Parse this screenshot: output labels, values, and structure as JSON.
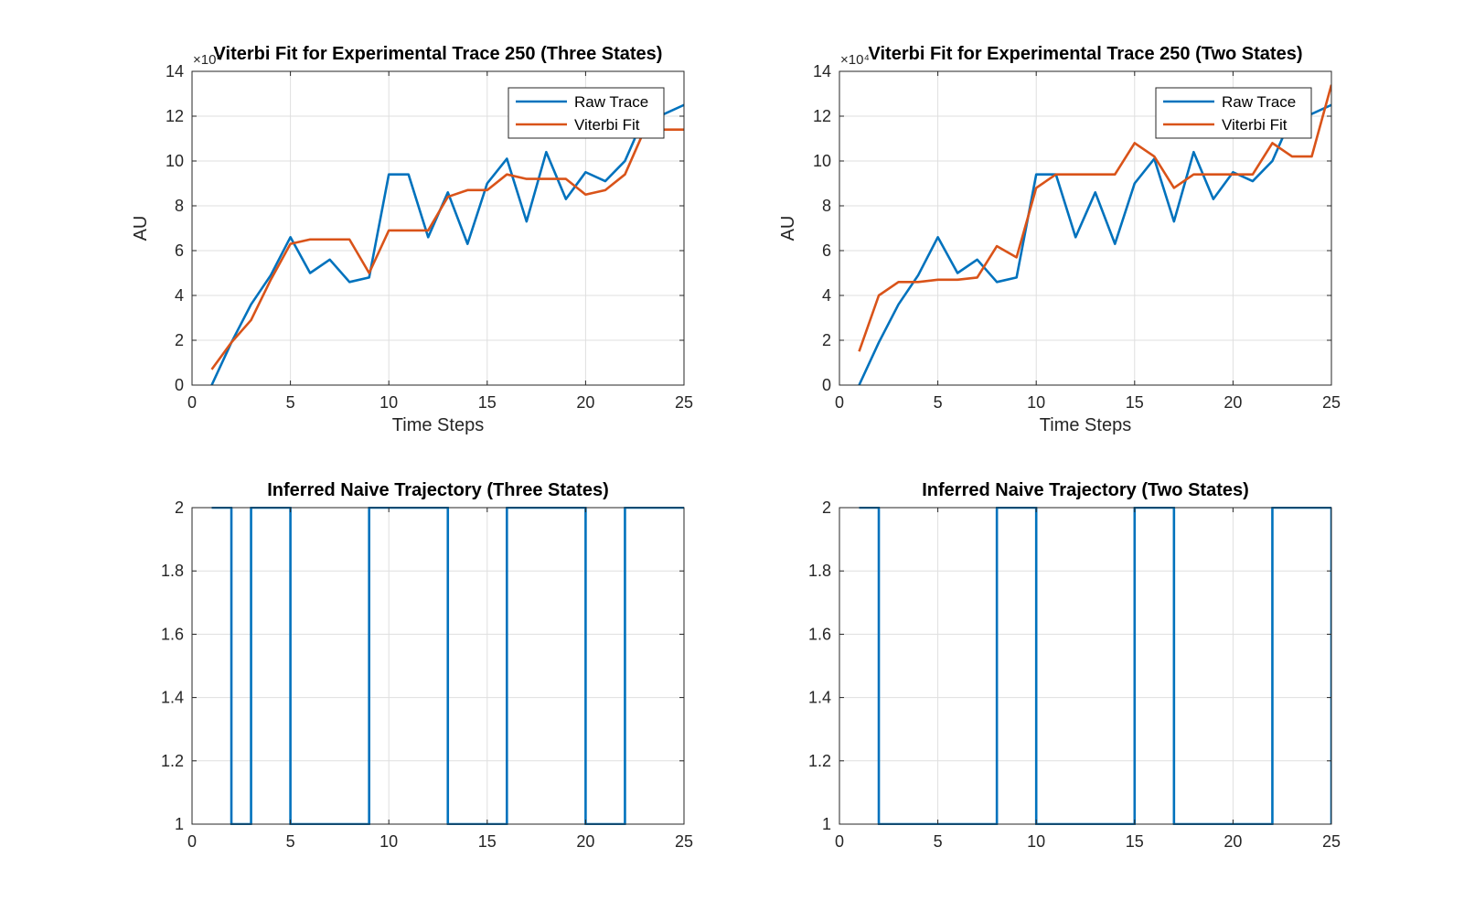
{
  "chart_data": [
    {
      "type": "line",
      "title": "Viterbi Fit for Experimental Trace 250 (Three States)",
      "xlabel": "Time Steps",
      "ylabel": "AU",
      "y_exponent": "×10⁴",
      "xlim": [
        0,
        25
      ],
      "ylim": [
        0,
        14
      ],
      "xticks": [
        "0",
        "5",
        "10",
        "15",
        "20",
        "25"
      ],
      "yticks": [
        "0",
        "2",
        "4",
        "6",
        "8",
        "10",
        "12",
        "14"
      ],
      "grid": true,
      "legend": "top-right",
      "series": [
        {
          "name": "Raw Trace",
          "color": "#0072BD",
          "x": [
            1,
            2,
            3,
            4,
            5,
            6,
            7,
            8,
            9,
            10,
            11,
            12,
            13,
            14,
            15,
            16,
            17,
            18,
            19,
            20,
            21,
            22,
            23,
            24,
            25
          ],
          "y": [
            0,
            1.9,
            3.6,
            4.9,
            6.6,
            5.0,
            5.6,
            4.6,
            4.8,
            9.4,
            9.4,
            6.6,
            8.6,
            6.3,
            9.0,
            10.1,
            7.3,
            10.4,
            8.3,
            9.5,
            9.1,
            10.0,
            12.0,
            12.1,
            12.5
          ]
        },
        {
          "name": "Viterbi Fit",
          "color": "#D95319",
          "x": [
            1,
            2,
            3,
            4,
            5,
            6,
            7,
            8,
            9,
            10,
            11,
            12,
            13,
            14,
            15,
            16,
            17,
            18,
            19,
            20,
            21,
            22,
            23,
            24,
            25
          ],
          "y": [
            0.7,
            1.9,
            2.9,
            4.7,
            6.3,
            6.5,
            6.5,
            6.5,
            5.0,
            6.9,
            6.9,
            6.9,
            8.4,
            8.7,
            8.7,
            9.4,
            9.2,
            9.2,
            9.2,
            8.5,
            8.7,
            9.4,
            11.4,
            11.4,
            11.4
          ]
        }
      ]
    },
    {
      "type": "line",
      "title": "Viterbi Fit for Experimental Trace  250 (Two States)",
      "xlabel": "Time Steps",
      "ylabel": "AU",
      "y_exponent": "×10⁴",
      "xlim": [
        0,
        25
      ],
      "ylim": [
        0,
        14
      ],
      "xticks": [
        "0",
        "5",
        "10",
        "15",
        "20",
        "25"
      ],
      "yticks": [
        "0",
        "2",
        "4",
        "6",
        "8",
        "10",
        "12",
        "14"
      ],
      "grid": true,
      "legend": "top-right",
      "series": [
        {
          "name": "Raw Trace",
          "color": "#0072BD",
          "x": [
            1,
            2,
            3,
            4,
            5,
            6,
            7,
            8,
            9,
            10,
            11,
            12,
            13,
            14,
            15,
            16,
            17,
            18,
            19,
            20,
            21,
            22,
            23,
            24,
            25
          ],
          "y": [
            0,
            1.9,
            3.6,
            4.9,
            6.6,
            5.0,
            5.6,
            4.6,
            4.8,
            9.4,
            9.4,
            6.6,
            8.6,
            6.3,
            9.0,
            10.1,
            7.3,
            10.4,
            8.3,
            9.5,
            9.1,
            10.0,
            12.0,
            12.1,
            12.5
          ]
        },
        {
          "name": "Viterbi Fit",
          "color": "#D95319",
          "x": [
            1,
            2,
            3,
            4,
            5,
            6,
            7,
            8,
            9,
            10,
            11,
            12,
            13,
            14,
            15,
            16,
            17,
            18,
            19,
            20,
            21,
            22,
            23,
            24,
            25
          ],
          "y": [
            1.5,
            4.0,
            4.6,
            4.6,
            4.7,
            4.7,
            4.8,
            6.2,
            5.7,
            8.8,
            9.4,
            9.4,
            9.4,
            9.4,
            10.8,
            10.2,
            8.8,
            9.4,
            9.4,
            9.4,
            9.4,
            10.8,
            10.2,
            10.2,
            13.4
          ]
        }
      ]
    },
    {
      "type": "line",
      "title": "Inferred Naive Trajectory (Three States)",
      "xlabel": "",
      "ylabel": "",
      "xlim": [
        0,
        25
      ],
      "ylim": [
        1,
        2
      ],
      "xticks": [
        "0",
        "5",
        "10",
        "15",
        "20",
        "25"
      ],
      "yticks": [
        "1",
        "1.2",
        "1.4",
        "1.6",
        "1.8",
        "2"
      ],
      "grid": true,
      "step": true,
      "series": [
        {
          "color": "#0072BD",
          "x": [
            1,
            2,
            3,
            4,
            5,
            6,
            7,
            8,
            9,
            10,
            11,
            12,
            13,
            14,
            15,
            16,
            17,
            18,
            19,
            20,
            21,
            22,
            23,
            24,
            25
          ],
          "y": [
            2,
            1,
            2,
            2,
            1,
            1,
            1,
            1,
            2,
            2,
            2,
            2,
            1,
            1,
            1,
            2,
            2,
            2,
            2,
            1,
            1,
            2,
            2,
            2,
            2
          ]
        }
      ]
    },
    {
      "type": "line",
      "title": "Inferred Naive Trajectory (Two States)",
      "xlabel": "",
      "ylabel": "",
      "xlim": [
        0,
        25
      ],
      "ylim": [
        1,
        2
      ],
      "xticks": [
        "0",
        "5",
        "10",
        "15",
        "20",
        "25"
      ],
      "yticks": [
        "1",
        "1.2",
        "1.4",
        "1.6",
        "1.8",
        "2"
      ],
      "grid": true,
      "step": true,
      "series": [
        {
          "color": "#0072BD",
          "x": [
            1,
            2,
            3,
            4,
            5,
            6,
            7,
            8,
            9,
            10,
            11,
            12,
            13,
            14,
            15,
            16,
            17,
            18,
            19,
            20,
            21,
            22,
            23,
            24,
            25
          ],
          "y": [
            2,
            1,
            1,
            1,
            1,
            1,
            1,
            2,
            2,
            1,
            1,
            1,
            1,
            1,
            2,
            2,
            1,
            1,
            1,
            1,
            1,
            2,
            2,
            2,
            1
          ]
        }
      ]
    }
  ]
}
